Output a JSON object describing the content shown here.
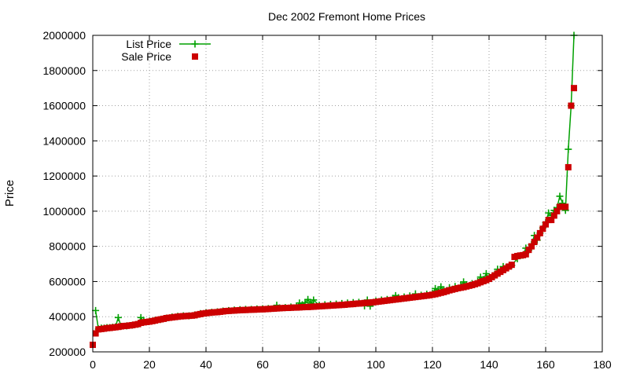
{
  "chart_data": {
    "type": "line",
    "title": "Dec 2002 Fremont Home Prices",
    "xlabel": "",
    "ylabel": "Price",
    "xlim": [
      0,
      180
    ],
    "ylim": [
      200000,
      2000000
    ],
    "x_ticks": [
      0,
      20,
      40,
      60,
      80,
      100,
      120,
      140,
      160,
      180
    ],
    "x_tick_labels": [
      "0",
      "20",
      "40",
      "60",
      "80",
      "100",
      "120",
      "140",
      "160",
      "180"
    ],
    "y_ticks": [
      200000,
      400000,
      600000,
      800000,
      1000000,
      1200000,
      1400000,
      1600000,
      1800000,
      2000000
    ],
    "y_tick_labels": [
      "200000",
      "400000",
      "600000",
      "800000",
      "1000000",
      "1200000",
      "1400000",
      "1600000",
      "1800000",
      "2000000"
    ],
    "grid": true,
    "legend_position": "top-left",
    "series": [
      {
        "name": "List Price",
        "style": "lines+crosses",
        "color": "#00a000",
        "points": [
          [
            1,
            435000
          ],
          [
            2,
            330000
          ],
          [
            3,
            335000
          ],
          [
            4,
            335000
          ],
          [
            5,
            338000
          ],
          [
            6,
            338000
          ],
          [
            7,
            340000
          ],
          [
            8,
            342000
          ],
          [
            9,
            395000
          ],
          [
            10,
            345000
          ],
          [
            12,
            348000
          ],
          [
            14,
            352000
          ],
          [
            16,
            358000
          ],
          [
            17,
            395000
          ],
          [
            18,
            372000
          ],
          [
            20,
            375000
          ],
          [
            22,
            380000
          ],
          [
            24,
            385000
          ],
          [
            26,
            392000
          ],
          [
            28,
            398000
          ],
          [
            30,
            402000
          ],
          [
            32,
            405000
          ],
          [
            34,
            405000
          ],
          [
            36,
            410000
          ],
          [
            38,
            418000
          ],
          [
            40,
            422000
          ],
          [
            42,
            425000
          ],
          [
            44,
            428000
          ],
          [
            46,
            432000
          ],
          [
            48,
            435000
          ],
          [
            50,
            438000
          ],
          [
            52,
            440000
          ],
          [
            54,
            442000
          ],
          [
            56,
            442000
          ],
          [
            58,
            444000
          ],
          [
            60,
            445000
          ],
          [
            62,
            446000
          ],
          [
            64,
            448000
          ],
          [
            65,
            465000
          ],
          [
            66,
            450000
          ],
          [
            68,
            452000
          ],
          [
            70,
            455000
          ],
          [
            72,
            458000
          ],
          [
            73,
            478000
          ],
          [
            74,
            468000
          ],
          [
            75,
            480000
          ],
          [
            76,
            498000
          ],
          [
            77,
            478000
          ],
          [
            78,
            495000
          ],
          [
            80,
            465000
          ],
          [
            82,
            468000
          ],
          [
            84,
            470000
          ],
          [
            86,
            472000
          ],
          [
            88,
            475000
          ],
          [
            90,
            478000
          ],
          [
            92,
            480000
          ],
          [
            94,
            482000
          ],
          [
            96,
            462000
          ],
          [
            97,
            495000
          ],
          [
            98,
            460000
          ],
          [
            100,
            490000
          ],
          [
            102,
            495000
          ],
          [
            104,
            498000
          ],
          [
            106,
            505000
          ],
          [
            107,
            520000
          ],
          [
            108,
            508000
          ],
          [
            110,
            512000
          ],
          [
            112,
            518000
          ],
          [
            114,
            530000
          ],
          [
            116,
            522000
          ],
          [
            118,
            528000
          ],
          [
            120,
            532000
          ],
          [
            121,
            560000
          ],
          [
            122,
            548000
          ],
          [
            123,
            570000
          ],
          [
            124,
            552000
          ],
          [
            126,
            565000
          ],
          [
            128,
            572000
          ],
          [
            130,
            578000
          ],
          [
            131,
            598000
          ],
          [
            132,
            582000
          ],
          [
            134,
            588000
          ],
          [
            136,
            600000
          ],
          [
            137,
            625000
          ],
          [
            138,
            612000
          ],
          [
            139,
            645000
          ],
          [
            140,
            620000
          ],
          [
            142,
            640000
          ],
          [
            143,
            670000
          ],
          [
            144,
            660000
          ],
          [
            145,
            685000
          ],
          [
            146,
            680000
          ],
          [
            148,
            692000
          ],
          [
            150,
            730000
          ],
          [
            152,
            750000
          ],
          [
            153,
            790000
          ],
          [
            154,
            778000
          ],
          [
            155,
            810000
          ],
          [
            156,
            862000
          ],
          [
            157,
            835000
          ],
          [
            158,
            875000
          ],
          [
            159,
            905000
          ],
          [
            160,
            935000
          ],
          [
            161,
            990000
          ],
          [
            162,
            975000
          ],
          [
            163,
            1005000
          ],
          [
            164,
            1020000
          ],
          [
            165,
            1085000
          ],
          [
            166,
            1045000
          ],
          [
            167,
            1005000
          ],
          [
            168,
            1352000
          ],
          [
            169,
            1600000
          ],
          [
            170,
            2000000
          ]
        ]
      },
      {
        "name": "Sale Price",
        "style": "points",
        "color": "#cc0000",
        "points": [
          [
            0,
            240000
          ],
          [
            1,
            305000
          ],
          [
            2,
            328000
          ],
          [
            3,
            330000
          ],
          [
            4,
            332000
          ],
          [
            5,
            335000
          ],
          [
            6,
            336000
          ],
          [
            7,
            338000
          ],
          [
            8,
            340000
          ],
          [
            9,
            342000
          ],
          [
            10,
            345000
          ],
          [
            11,
            347000
          ],
          [
            12,
            348000
          ],
          [
            13,
            350000
          ],
          [
            14,
            352000
          ],
          [
            15,
            355000
          ],
          [
            16,
            358000
          ],
          [
            17,
            365000
          ],
          [
            18,
            368000
          ],
          [
            19,
            370000
          ],
          [
            20,
            372000
          ],
          [
            21,
            375000
          ],
          [
            22,
            378000
          ],
          [
            23,
            382000
          ],
          [
            24,
            385000
          ],
          [
            25,
            388000
          ],
          [
            26,
            392000
          ],
          [
            27,
            394000
          ],
          [
            28,
            396000
          ],
          [
            29,
            398000
          ],
          [
            30,
            400000
          ],
          [
            31,
            402000
          ],
          [
            32,
            403000
          ],
          [
            33,
            404000
          ],
          [
            34,
            405000
          ],
          [
            35,
            406000
          ],
          [
            36,
            408000
          ],
          [
            37,
            412000
          ],
          [
            38,
            415000
          ],
          [
            39,
            418000
          ],
          [
            40,
            420000
          ],
          [
            41,
            422000
          ],
          [
            42,
            424000
          ],
          [
            43,
            425000
          ],
          [
            44,
            426000
          ],
          [
            45,
            428000
          ],
          [
            46,
            430000
          ],
          [
            47,
            432000
          ],
          [
            48,
            433000
          ],
          [
            49,
            434000
          ],
          [
            50,
            435000
          ],
          [
            51,
            436000
          ],
          [
            52,
            437000
          ],
          [
            53,
            438000
          ],
          [
            54,
            438000
          ],
          [
            55,
            439000
          ],
          [
            56,
            440000
          ],
          [
            57,
            440000
          ],
          [
            58,
            441000
          ],
          [
            59,
            442000
          ],
          [
            60,
            442000
          ],
          [
            61,
            443000
          ],
          [
            62,
            444000
          ],
          [
            63,
            445000
          ],
          [
            64,
            446000
          ],
          [
            65,
            447000
          ],
          [
            66,
            448000
          ],
          [
            67,
            449000
          ],
          [
            68,
            450000
          ],
          [
            69,
            450000
          ],
          [
            70,
            451000
          ],
          [
            71,
            452000
          ],
          [
            72,
            452000
          ],
          [
            73,
            453000
          ],
          [
            74,
            454000
          ],
          [
            75,
            455000
          ],
          [
            76,
            455000
          ],
          [
            77,
            456000
          ],
          [
            78,
            457000
          ],
          [
            79,
            458000
          ],
          [
            80,
            459000
          ],
          [
            81,
            460000
          ],
          [
            82,
            461000
          ],
          [
            83,
            462000
          ],
          [
            84,
            463000
          ],
          [
            85,
            464000
          ],
          [
            86,
            465000
          ],
          [
            87,
            466000
          ],
          [
            88,
            467000
          ],
          [
            89,
            468000
          ],
          [
            90,
            470000
          ],
          [
            91,
            471000
          ],
          [
            92,
            472000
          ],
          [
            93,
            474000
          ],
          [
            94,
            475000
          ],
          [
            95,
            476000
          ],
          [
            96,
            478000
          ],
          [
            97,
            479000
          ],
          [
            98,
            480000
          ],
          [
            99,
            482000
          ],
          [
            100,
            484000
          ],
          [
            101,
            486000
          ],
          [
            102,
            488000
          ],
          [
            103,
            490000
          ],
          [
            104,
            492000
          ],
          [
            105,
            494000
          ],
          [
            106,
            496000
          ],
          [
            107,
            498000
          ],
          [
            108,
            500000
          ],
          [
            109,
            502000
          ],
          [
            110,
            504000
          ],
          [
            111,
            506000
          ],
          [
            112,
            508000
          ],
          [
            113,
            510000
          ],
          [
            114,
            512000
          ],
          [
            115,
            514000
          ],
          [
            116,
            516000
          ],
          [
            117,
            518000
          ],
          [
            118,
            520000
          ],
          [
            119,
            522000
          ],
          [
            120,
            525000
          ],
          [
            121,
            528000
          ],
          [
            122,
            532000
          ],
          [
            123,
            536000
          ],
          [
            124,
            540000
          ],
          [
            125,
            545000
          ],
          [
            126,
            550000
          ],
          [
            127,
            554000
          ],
          [
            128,
            558000
          ],
          [
            129,
            562000
          ],
          [
            130,
            565000
          ],
          [
            131,
            568000
          ],
          [
            132,
            572000
          ],
          [
            133,
            576000
          ],
          [
            134,
            580000
          ],
          [
            135,
            585000
          ],
          [
            136,
            590000
          ],
          [
            137,
            596000
          ],
          [
            138,
            602000
          ],
          [
            139,
            608000
          ],
          [
            140,
            615000
          ],
          [
            141,
            625000
          ],
          [
            142,
            635000
          ],
          [
            143,
            645000
          ],
          [
            144,
            655000
          ],
          [
            145,
            665000
          ],
          [
            146,
            675000
          ],
          [
            147,
            685000
          ],
          [
            148,
            695000
          ],
          [
            149,
            740000
          ],
          [
            150,
            745000
          ],
          [
            151,
            748000
          ],
          [
            152,
            750000
          ],
          [
            153,
            755000
          ],
          [
            154,
            780000
          ],
          [
            155,
            800000
          ],
          [
            156,
            825000
          ],
          [
            157,
            850000
          ],
          [
            158,
            875000
          ],
          [
            159,
            900000
          ],
          [
            160,
            925000
          ],
          [
            161,
            950000
          ],
          [
            162,
            950000
          ],
          [
            163,
            975000
          ],
          [
            164,
            1000000
          ],
          [
            165,
            1025000
          ],
          [
            166,
            1025000
          ],
          [
            167,
            1025000
          ],
          [
            168,
            1250000
          ],
          [
            169,
            1600000
          ],
          [
            170,
            1700000
          ]
        ]
      }
    ]
  }
}
